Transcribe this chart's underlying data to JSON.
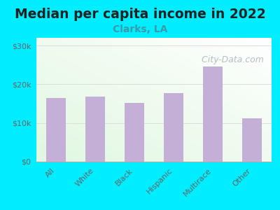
{
  "title": "Median per capita income in 2022",
  "subtitle": "Clarks, LA",
  "categories": [
    "All",
    "White",
    "Black",
    "Hispanic",
    "Multirace",
    "Other"
  ],
  "values": [
    16500,
    16800,
    15200,
    17800,
    24500,
    11200
  ],
  "bar_color": "#c4afd6",
  "background_outer": "#00eeff",
  "ylim": [
    0,
    32000
  ],
  "yticks": [
    0,
    10000,
    20000,
    30000
  ],
  "ytick_labels": [
    "$0",
    "$10k",
    "$20k",
    "$30k"
  ],
  "title_fontsize": 13.5,
  "subtitle_fontsize": 10,
  "tick_fontsize": 8,
  "watermark": "  City-Data.com",
  "watermark_color": "#a0aab0",
  "watermark_fontsize": 9,
  "grid_color": "#dddddd",
  "spine_color": "#aaaaaa",
  "title_color": "#222222",
  "subtitle_color": "#3a9aaa",
  "tick_color": "#666666"
}
